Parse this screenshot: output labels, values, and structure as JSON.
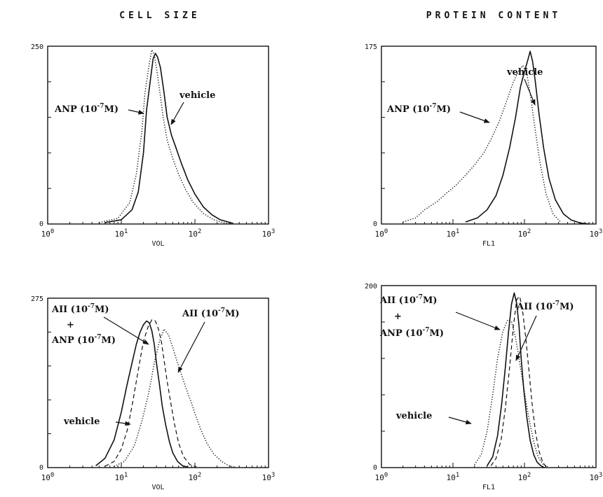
{
  "column_titles": [
    "CELL SIZE",
    "PROTEIN CONTENT"
  ],
  "chart_data": [
    {
      "type": "line",
      "title": "CELL SIZE",
      "xlabel": "VOL",
      "ylabel": "",
      "x_scale": "log",
      "xlim": [
        1,
        1000
      ],
      "ylim": [
        0,
        250
      ],
      "y_ticks": [
        "250",
        "0"
      ],
      "x_ticks": [
        {
          "base": "10",
          "exp": "0"
        },
        {
          "base": "10",
          "exp": "1"
        },
        {
          "base": "10",
          "exp": "2"
        },
        {
          "base": "10",
          "exp": "3"
        }
      ],
      "series": [
        {
          "name": "vehicle",
          "style": "solid",
          "x": [
            6,
            10,
            14,
            17,
            20,
            22,
            25,
            27,
            29,
            31,
            34,
            38,
            42,
            48,
            55,
            65,
            80,
            100,
            130,
            170,
            220,
            280,
            330
          ],
          "y": [
            2,
            6,
            20,
            45,
            100,
            160,
            205,
            232,
            240,
            235,
            220,
            185,
            150,
            125,
            108,
            86,
            62,
            42,
            24,
            13,
            6,
            3,
            1
          ]
        },
        {
          "name": "ANP (10-7M)",
          "style": "dotted",
          "x": [
            5,
            9,
            13,
            16,
            19,
            21,
            24,
            26,
            28,
            30,
            33,
            37,
            42,
            50,
            60,
            75,
            95,
            130,
            180,
            240,
            300
          ],
          "y": [
            2,
            8,
            30,
            70,
            130,
            185,
            225,
            245,
            238,
            220,
            190,
            150,
            118,
            92,
            70,
            48,
            30,
            15,
            6,
            2,
            1
          ]
        }
      ],
      "annotations": [
        {
          "base": "ANP (10",
          "sup": "-7",
          "tail": "M)"
        },
        {
          "base": "vehicle",
          "sup": "",
          "tail": ""
        }
      ]
    },
    {
      "type": "line",
      "title": "PROTEIN CONTENT",
      "xlabel": "FL1",
      "ylabel": "",
      "x_scale": "log",
      "xlim": [
        1,
        1000
      ],
      "ylim": [
        0,
        175
      ],
      "y_ticks": [
        "175",
        "0"
      ],
      "x_ticks": [
        {
          "base": "10",
          "exp": "0"
        },
        {
          "base": "10",
          "exp": "1"
        },
        {
          "base": "10",
          "exp": "2"
        },
        {
          "base": "10",
          "exp": "3"
        }
      ],
      "series": [
        {
          "name": "vehicle",
          "style": "solid",
          "x": [
            15,
            22,
            30,
            40,
            50,
            62,
            75,
            88,
            100,
            110,
            120,
            130,
            142,
            160,
            185,
            220,
            270,
            350,
            450,
            600,
            800
          ],
          "y": [
            2,
            6,
            14,
            28,
            48,
            75,
            105,
            135,
            150,
            160,
            170,
            160,
            140,
            108,
            75,
            45,
            24,
            10,
            4,
            1,
            0
          ]
        },
        {
          "name": "ANP (10-7M)",
          "style": "dotted",
          "x": [
            2,
            3,
            4,
            6,
            8,
            11,
            15,
            20,
            27,
            35,
            45,
            57,
            70,
            82,
            95,
            108,
            122,
            140,
            165,
            200,
            250,
            320
          ],
          "y": [
            2,
            6,
            14,
            22,
            30,
            38,
            48,
            58,
            70,
            85,
            102,
            122,
            140,
            150,
            156,
            148,
            125,
            95,
            60,
            30,
            10,
            2
          ]
        }
      ],
      "annotations": [
        {
          "base": "ANP (10",
          "sup": "-7",
          "tail": "M)"
        },
        {
          "base": "vehicle",
          "sup": "",
          "tail": ""
        }
      ]
    },
    {
      "type": "line",
      "title": "CELL SIZE",
      "xlabel": "VOL",
      "ylabel": "",
      "x_scale": "log",
      "xlim": [
        1,
        1000
      ],
      "ylim": [
        0,
        275
      ],
      "y_ticks": [
        "275",
        "0"
      ],
      "x_ticks": [
        {
          "base": "10",
          "exp": "0"
        },
        {
          "base": "10",
          "exp": "1"
        },
        {
          "base": "10",
          "exp": "2"
        },
        {
          "base": "10",
          "exp": "3"
        }
      ],
      "series": [
        {
          "name": "vehicle",
          "style": "solid",
          "x": [
            4.5,
            6,
            8,
            10,
            12,
            14,
            16,
            18,
            20,
            22,
            24,
            26,
            28,
            30,
            33,
            36,
            40,
            45,
            50,
            58,
            68,
            80
          ],
          "y": [
            3,
            15,
            45,
            90,
            135,
            170,
            200,
            220,
            232,
            238,
            235,
            222,
            200,
            170,
            135,
            100,
            70,
            42,
            24,
            10,
            3,
            1
          ]
        },
        {
          "name": "AII (10-7M) + ANP (10-7M)",
          "style": "dashed",
          "x": [
            6,
            8,
            10,
            12,
            14,
            16,
            18,
            20,
            23,
            26,
            29,
            32,
            35,
            38,
            42,
            47,
            53,
            60,
            70,
            85,
            105
          ],
          "y": [
            2,
            10,
            30,
            60,
            100,
            140,
            175,
            205,
            228,
            240,
            238,
            225,
            205,
            175,
            140,
            105,
            70,
            40,
            18,
            5,
            1
          ]
        },
        {
          "name": "AII (10-7M)",
          "style": "dotted",
          "x": [
            8,
            11,
            15,
            19,
            24,
            28,
            33,
            38,
            44,
            50,
            58,
            66,
            76,
            88,
            100,
            120,
            145,
            180,
            230,
            290,
            350
          ],
          "y": [
            2,
            10,
            35,
            75,
            125,
            170,
            205,
            225,
            215,
            195,
            170,
            150,
            128,
            108,
            88,
            62,
            40,
            22,
            10,
            3,
            1
          ]
        }
      ],
      "annotations": [
        {
          "base": "AII (10",
          "sup": "-7",
          "tail": "M)"
        },
        {
          "base": "+",
          "sup": "",
          "tail": ""
        },
        {
          "base": "ANP (10",
          "sup": "-7",
          "tail": "M)"
        },
        {
          "base": "AII (10",
          "sup": "-7",
          "tail": "M)"
        },
        {
          "base": "vehicle",
          "sup": "",
          "tail": ""
        }
      ]
    },
    {
      "type": "line",
      "title": "PROTEIN CONTENT",
      "xlabel": "FL1",
      "ylabel": "",
      "x_scale": "log",
      "xlim": [
        1,
        1000
      ],
      "ylim": [
        0,
        200
      ],
      "y_ticks": [
        "200",
        "0"
      ],
      "x_ticks": [
        {
          "base": "10",
          "exp": "0"
        },
        {
          "base": "10",
          "exp": "1"
        },
        {
          "base": "10",
          "exp": "2"
        },
        {
          "base": "10",
          "exp": "3"
        }
      ],
      "series": [
        {
          "name": "vehicle",
          "style": "solid",
          "x": [
            30,
            36,
            42,
            48,
            54,
            60,
            66,
            72,
            78,
            84,
            90,
            98,
            108,
            120,
            135,
            150,
            170,
            190
          ],
          "y": [
            2,
            12,
            35,
            70,
            110,
            150,
            180,
            192,
            180,
            155,
            120,
            85,
            55,
            30,
            14,
            6,
            2,
            0
          ]
        },
        {
          "name": "AII (10-7M) + ANP (10-7M)",
          "style": "dashed",
          "x": [
            34,
            40,
            47,
            54,
            62,
            70,
            78,
            86,
            95,
            105,
            116,
            128,
            142,
            160,
            180,
            200
          ],
          "y": [
            2,
            10,
            30,
            65,
            110,
            155,
            185,
            188,
            170,
            140,
            105,
            70,
            40,
            18,
            6,
            1
          ]
        },
        {
          "name": "AII (10-7M)",
          "style": "dotted",
          "x": [
            20,
            25,
            30,
            36,
            42,
            50,
            58,
            66,
            74,
            82,
            92,
            104,
            118,
            135,
            155,
            180,
            210
          ],
          "y": [
            3,
            15,
            40,
            80,
            120,
            150,
            162,
            160,
            145,
            125,
            100,
            75,
            50,
            28,
            12,
            4,
            1
          ]
        }
      ],
      "annotations": [
        {
          "base": "AII (10",
          "sup": "-7",
          "tail": "M)"
        },
        {
          "base": "+",
          "sup": "",
          "tail": ""
        },
        {
          "base": "ANP (10",
          "sup": "-7",
          "tail": "M)"
        },
        {
          "base": "AII (10",
          "sup": "-7",
          "tail": "M)"
        },
        {
          "base": "vehicle",
          "sup": "",
          "tail": ""
        }
      ]
    }
  ]
}
